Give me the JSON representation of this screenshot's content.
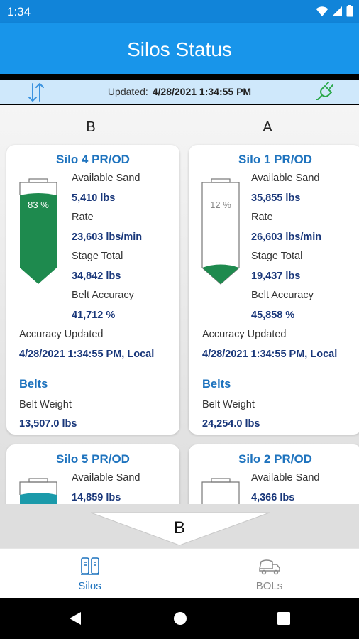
{
  "status_bar": {
    "time": "1:34"
  },
  "header": {
    "title": "Silos Status"
  },
  "info_bar": {
    "updated_label": "Updated:",
    "updated_value": "4/28/2021 1:34:55 PM"
  },
  "columns": {
    "left": "B",
    "right": "A"
  },
  "labels": {
    "available_sand": "Available Sand",
    "rate": "Rate",
    "stage_total": "Stage Total",
    "belt_accuracy": "Belt Accuracy",
    "accuracy_updated": "Accuracy Updated",
    "belts": "Belts",
    "belt_weight": "Belt Weight"
  },
  "silos": [
    {
      "name": "Silo 4 PR/OD",
      "fill_percent": 83,
      "fill_label": "83 %",
      "fill_color": "#1e8a4e",
      "available_sand": "5,410 lbs",
      "rate": "23,603 lbs/min",
      "stage_total": "34,842 lbs",
      "belt_accuracy": "41,712 %",
      "accuracy_updated": "4/28/2021 1:34:55 PM, Local",
      "belt_weight": "13,507.0 lbs"
    },
    {
      "name": "Silo 1 PR/OD",
      "fill_percent": 12,
      "fill_label": "12 %",
      "fill_color": "#1e8a4e",
      "available_sand": "35,855 lbs",
      "rate": "26,603 lbs/min",
      "stage_total": "19,437 lbs",
      "belt_accuracy": "45,858 %",
      "accuracy_updated": "4/28/2021 1:34:55 PM, Local",
      "belt_weight": "24,254.0 lbs"
    },
    {
      "name": "Silo 5 PR/OD",
      "fill_color": "#1b9aaa",
      "available_sand": "14,859 lbs"
    },
    {
      "name": "Silo 2 PR/OD",
      "available_sand": "4,366 lbs"
    }
  ],
  "scroll_indicator": {
    "label": "B"
  },
  "bottom_nav": [
    {
      "label": "Silos",
      "icon": "silos-icon",
      "active": true
    },
    {
      "label": "BOLs",
      "icon": "truck-icon",
      "active": false
    }
  ],
  "colors": {
    "primary": "#1895ea",
    "status_bar": "#1184d9",
    "info_bar": "#cfe8fb",
    "title_blue": "#1e73be",
    "value_navy": "#19377a",
    "plug_green": "#2aa84a"
  }
}
